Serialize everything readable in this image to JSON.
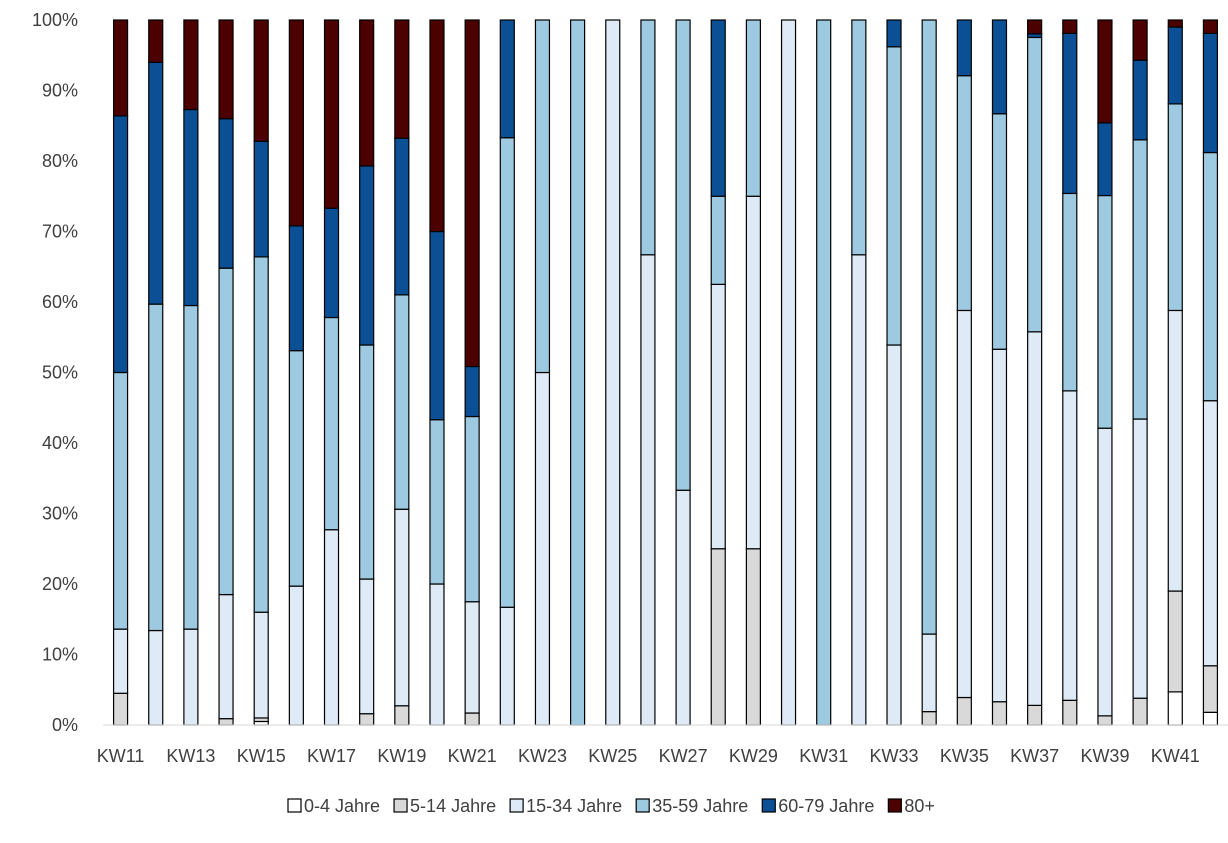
{
  "chart_data": {
    "type": "bar",
    "stacked": true,
    "normalized": true,
    "categories": [
      "KW11",
      "KW12",
      "KW13",
      "KW14",
      "KW15",
      "KW16",
      "KW17",
      "KW18",
      "KW19",
      "KW20",
      "KW21",
      "KW22",
      "KW23",
      "KW24",
      "KW25",
      "KW26",
      "KW27",
      "KW28",
      "KW29",
      "KW30",
      "KW31",
      "KW32",
      "KW33",
      "KW34",
      "KW35",
      "KW36",
      "KW37",
      "KW38",
      "KW39",
      "KW40",
      "KW41",
      "KW42"
    ],
    "x_tick_labels": [
      "KW11",
      "KW13",
      "KW15",
      "KW17",
      "KW19",
      "KW21",
      "KW23",
      "KW25",
      "KW27",
      "KW29",
      "KW31",
      "KW33",
      "KW35",
      "KW37",
      "KW39",
      "KW41"
    ],
    "y_tick_labels": [
      "0%",
      "10%",
      "20%",
      "30%",
      "40%",
      "50%",
      "60%",
      "70%",
      "80%",
      "90%",
      "100%"
    ],
    "ylim": [
      0,
      100
    ],
    "grid": false,
    "legend_position": "bottom",
    "series": [
      {
        "name": "0-4 Jahre",
        "color": "#ffffff",
        "values": [
          0,
          0,
          0,
          0,
          0.5,
          0,
          0,
          0,
          0,
          0,
          0,
          0,
          0,
          0,
          0,
          0,
          0,
          0,
          0,
          0,
          0,
          0,
          0,
          0,
          0,
          0,
          0,
          0,
          0,
          0,
          4.7,
          1.8
        ]
      },
      {
        "name": "5-14 Jahre",
        "color": "#d9d9d9",
        "values": [
          4.5,
          0,
          0,
          0.9,
          0.5,
          0,
          0,
          1.6,
          2.8,
          0,
          1.7,
          0,
          0,
          0,
          0,
          0,
          0,
          25,
          25,
          0,
          0,
          0,
          0,
          1.9,
          3.9,
          3.3,
          2.7,
          3.5,
          1.3,
          3.8,
          14.3,
          6.6
        ]
      },
      {
        "name": "15-34 Jahre",
        "color": "#deebf7",
        "values": [
          9.1,
          13.4,
          13.6,
          17.6,
          15.0,
          19.7,
          27.7,
          19.1,
          28.6,
          20.0,
          15.8,
          16.7,
          50,
          0,
          100,
          66.7,
          33.3,
          37.5,
          50,
          100,
          0,
          66.7,
          53.9,
          11.0,
          54.9,
          50.0,
          51.4,
          43.9,
          40.8,
          39.6,
          39.8,
          37.6
        ]
      },
      {
        "name": "35-59 Jahre",
        "color": "#9ecae1",
        "values": [
          36.4,
          46.3,
          45.9,
          46.3,
          50.4,
          33.4,
          30.1,
          33.2,
          31.2,
          23.3,
          26.3,
          66.6,
          50,
          100,
          0,
          33.3,
          66.7,
          12.5,
          25,
          0,
          100,
          33.3,
          42.3,
          87.1,
          33.3,
          33.4,
          40.5,
          28.0,
          33.0,
          39.6,
          29.3,
          35.2
        ]
      },
      {
        "name": "60-79 Jahre",
        "color": "#0b4f95",
        "values": [
          36.4,
          34.3,
          27.8,
          21.2,
          16.4,
          17.7,
          15.5,
          25.4,
          22.8,
          26.7,
          7.1,
          16.7,
          0,
          0,
          0,
          0,
          0,
          25,
          0,
          0,
          0,
          0,
          3.8,
          0,
          7.9,
          13.3,
          0.5,
          22.7,
          10.3,
          11.3,
          10.9,
          16.9
        ]
      },
      {
        "name": "80+",
        "color": "#4d0000",
        "values": [
          13.6,
          6.0,
          12.7,
          14.0,
          17.2,
          29.2,
          26.7,
          20.7,
          17.2,
          30.0,
          49.2,
          0,
          0,
          0,
          0,
          0,
          0,
          0,
          0,
          0,
          0,
          0,
          0,
          0,
          0,
          0,
          1.9,
          1.9,
          14.6,
          5.7,
          1.0,
          1.9
        ]
      }
    ]
  }
}
